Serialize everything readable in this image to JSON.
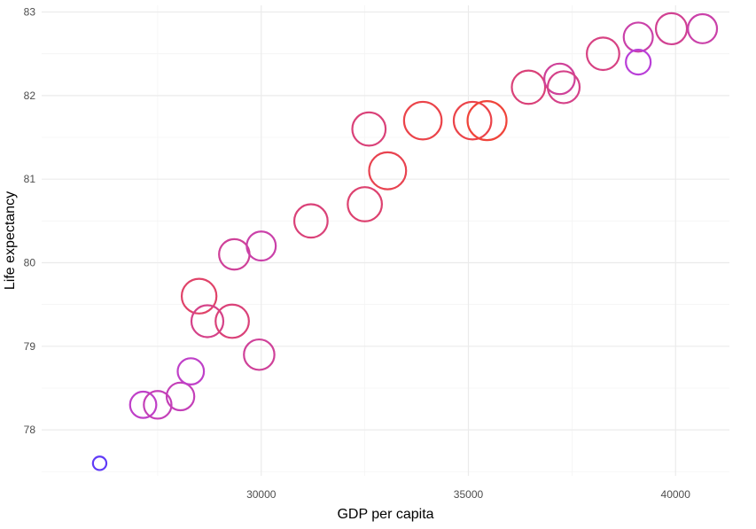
{
  "chart_data": {
    "type": "scatter",
    "title": "",
    "xlabel": "GDP per capita",
    "ylabel": "Life expectancy",
    "xlim": [
      24700,
      41300
    ],
    "ylim": [
      77.45,
      83.08
    ],
    "x_ticks": [
      30000,
      35000,
      40000
    ],
    "x_tick_labels": [
      "30000",
      "35000",
      "40000"
    ],
    "y_ticks": [
      78,
      79,
      80,
      81,
      82,
      83
    ],
    "y_tick_labels": [
      "78",
      "79",
      "80",
      "81",
      "82",
      "83"
    ],
    "grid": true,
    "legend": "none",
    "color_low": "#4a3aff",
    "color_mid": "#b93fd8",
    "color_high": "#f0443a",
    "points": [
      {
        "x": 26100,
        "y": 77.6,
        "size": 0.1
      },
      {
        "x": 27150,
        "y": 78.3,
        "size": 0.55
      },
      {
        "x": 27500,
        "y": 78.3,
        "size": 0.6
      },
      {
        "x": 28050,
        "y": 78.4,
        "size": 0.6
      },
      {
        "x": 28300,
        "y": 78.7,
        "size": 0.55
      },
      {
        "x": 28500,
        "y": 79.6,
        "size": 0.85
      },
      {
        "x": 28700,
        "y": 79.3,
        "size": 0.75
      },
      {
        "x": 29300,
        "y": 79.3,
        "size": 0.8
      },
      {
        "x": 29350,
        "y": 80.1,
        "size": 0.7
      },
      {
        "x": 29950,
        "y": 78.9,
        "size": 0.7
      },
      {
        "x": 30000,
        "y": 80.2,
        "size": 0.65
      },
      {
        "x": 31200,
        "y": 80.5,
        "size": 0.8
      },
      {
        "x": 32500,
        "y": 80.7,
        "size": 0.83
      },
      {
        "x": 32600,
        "y": 81.6,
        "size": 0.8
      },
      {
        "x": 33050,
        "y": 81.1,
        "size": 0.93
      },
      {
        "x": 33900,
        "y": 81.7,
        "size": 0.95
      },
      {
        "x": 35100,
        "y": 81.7,
        "size": 0.95
      },
      {
        "x": 35450,
        "y": 81.7,
        "size": 1.0
      },
      {
        "x": 36450,
        "y": 82.1,
        "size": 0.8
      },
      {
        "x": 37200,
        "y": 82.2,
        "size": 0.7
      },
      {
        "x": 37300,
        "y": 82.1,
        "size": 0.75
      },
      {
        "x": 38250,
        "y": 82.5,
        "size": 0.77
      },
      {
        "x": 39100,
        "y": 82.7,
        "size": 0.65
      },
      {
        "x": 39100,
        "y": 82.4,
        "size": 0.5
      },
      {
        "x": 39900,
        "y": 82.8,
        "size": 0.72
      },
      {
        "x": 40650,
        "y": 82.8,
        "size": 0.65
      }
    ]
  }
}
